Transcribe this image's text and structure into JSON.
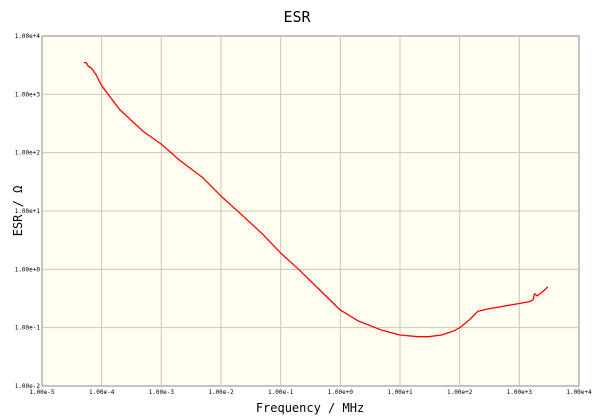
{
  "chart_data": {
    "type": "line",
    "title": "ESR",
    "xlabel": "Frequency / MHz",
    "ylabel": "ESR / Ω",
    "x_scale": "log",
    "y_scale": "log",
    "xlim": [
      1e-05,
      10000
    ],
    "ylim": [
      0.01,
      10000
    ],
    "grid": true,
    "x_ticks": [
      {
        "value": 1e-05,
        "label": "1.00e-5"
      },
      {
        "value": 0.0001,
        "label": "1.00e-4"
      },
      {
        "value": 0.001,
        "label": "1.00e-3"
      },
      {
        "value": 0.01,
        "label": "1.00e-2"
      },
      {
        "value": 0.1,
        "label": "1.00e-1"
      },
      {
        "value": 1,
        "label": "1.00e+0"
      },
      {
        "value": 10,
        "label": "1.00e+1"
      },
      {
        "value": 100,
        "label": "1.00e+2"
      },
      {
        "value": 1000,
        "label": "1.00e+3"
      },
      {
        "value": 10000,
        "label": "1.00e+4"
      }
    ],
    "y_ticks": [
      {
        "value": 10000,
        "label": "1.00e+4"
      },
      {
        "value": 1000,
        "label": "1.00e+3"
      },
      {
        "value": 100,
        "label": "1.00e+2"
      },
      {
        "value": 10,
        "label": "1.00e+1"
      },
      {
        "value": 1,
        "label": "1.00e+0"
      },
      {
        "value": 0.1,
        "label": "1.00e-1"
      },
      {
        "value": 0.01,
        "label": "1.00e-2"
      }
    ],
    "series": [
      {
        "color": "#ff0000",
        "x": [
          5e-05,
          5.5e-05,
          6e-05,
          6.5e-05,
          7e-05,
          7.5e-05,
          8e-05,
          0.0001,
          0.0002,
          0.0005,
          0.001,
          0.002,
          0.005,
          0.01,
          0.02,
          0.05,
          0.1,
          0.2,
          0.5,
          1,
          2,
          5,
          10,
          20,
          30,
          50,
          80,
          100,
          150,
          200,
          300,
          500,
          1000,
          1500,
          1700,
          1800,
          2000,
          2500,
          3000
        ],
        "y": [
          3500,
          3500,
          3000,
          2900,
          2700,
          2400,
          2200,
          1400,
          550,
          230,
          140,
          75,
          37,
          18,
          9.5,
          4,
          1.9,
          1.0,
          0.4,
          0.2,
          0.13,
          0.09,
          0.075,
          0.07,
          0.07,
          0.075,
          0.088,
          0.1,
          0.14,
          0.19,
          0.21,
          0.23,
          0.26,
          0.28,
          0.3,
          0.38,
          0.35,
          0.42,
          0.5
        ]
      }
    ]
  }
}
